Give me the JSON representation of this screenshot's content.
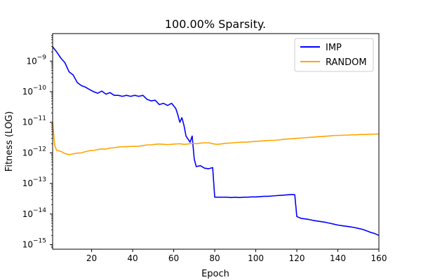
{
  "chart_data": {
    "type": "line",
    "title": "100.00% Sparsity.",
    "xlabel": "Epoch",
    "ylabel": "Fitness (LOG)",
    "xlim": [
      1,
      160
    ],
    "ylim_log10": [
      -15.15,
      -8.1
    ],
    "yscale": "log",
    "x_ticks": [
      20,
      40,
      60,
      80,
      100,
      120,
      140,
      160
    ],
    "x_tick_labels": [
      "20",
      "40",
      "60",
      "80",
      "100",
      "120",
      "140",
      "160"
    ],
    "y_ticks_exp": [
      -15,
      -14,
      -13,
      -12,
      -11,
      -10,
      -9
    ],
    "legend_position": "top-right",
    "grid": false,
    "series": [
      {
        "name": "IMP",
        "color": "#0000ff",
        "points": [
          [
            1,
            -8.53
          ],
          [
            3,
            -8.7
          ],
          [
            5,
            -8.9
          ],
          [
            7,
            -9.05
          ],
          [
            9,
            -9.35
          ],
          [
            11,
            -9.45
          ],
          [
            13,
            -9.7
          ],
          [
            15,
            -9.8
          ],
          [
            17,
            -9.85
          ],
          [
            19,
            -9.93
          ],
          [
            21,
            -10.0
          ],
          [
            23,
            -10.05
          ],
          [
            25,
            -9.98
          ],
          [
            27,
            -10.08
          ],
          [
            29,
            -10.03
          ],
          [
            31,
            -10.12
          ],
          [
            33,
            -10.12
          ],
          [
            35,
            -10.15
          ],
          [
            37,
            -10.12
          ],
          [
            39,
            -10.15
          ],
          [
            41,
            -10.12
          ],
          [
            43,
            -10.15
          ],
          [
            45,
            -10.12
          ],
          [
            47,
            -10.25
          ],
          [
            49,
            -10.3
          ],
          [
            51,
            -10.28
          ],
          [
            53,
            -10.42
          ],
          [
            55,
            -10.38
          ],
          [
            57,
            -10.45
          ],
          [
            59,
            -10.38
          ],
          [
            61,
            -10.55
          ],
          [
            62,
            -10.75
          ],
          [
            63,
            -11.0
          ],
          [
            64,
            -10.85
          ],
          [
            65,
            -11.1
          ],
          [
            66,
            -11.45
          ],
          [
            67,
            -11.55
          ],
          [
            68,
            -11.65
          ],
          [
            69,
            -11.45
          ],
          [
            70,
            -12.2
          ],
          [
            71,
            -12.45
          ],
          [
            73,
            -12.42
          ],
          [
            75,
            -12.5
          ],
          [
            77,
            -12.52
          ],
          [
            79,
            -12.48
          ],
          [
            80,
            -13.45
          ],
          [
            82,
            -13.45
          ],
          [
            84,
            -13.45
          ],
          [
            86,
            -13.45
          ],
          [
            88,
            -13.46
          ],
          [
            90,
            -13.45
          ],
          [
            92,
            -13.46
          ],
          [
            94,
            -13.45
          ],
          [
            96,
            -13.45
          ],
          [
            98,
            -13.44
          ],
          [
            100,
            -13.44
          ],
          [
            102,
            -13.43
          ],
          [
            104,
            -13.42
          ],
          [
            106,
            -13.42
          ],
          [
            108,
            -13.41
          ],
          [
            110,
            -13.4
          ],
          [
            112,
            -13.39
          ],
          [
            114,
            -13.38
          ],
          [
            116,
            -13.37
          ],
          [
            118,
            -13.36
          ],
          [
            119,
            -13.37
          ],
          [
            120,
            -14.08
          ],
          [
            122,
            -14.14
          ],
          [
            124,
            -14.16
          ],
          [
            126,
            -14.18
          ],
          [
            128,
            -14.21
          ],
          [
            130,
            -14.23
          ],
          [
            132,
            -14.25
          ],
          [
            134,
            -14.27
          ],
          [
            136,
            -14.3
          ],
          [
            138,
            -14.33
          ],
          [
            140,
            -14.36
          ],
          [
            142,
            -14.38
          ],
          [
            144,
            -14.4
          ],
          [
            146,
            -14.42
          ],
          [
            148,
            -14.44
          ],
          [
            150,
            -14.47
          ],
          [
            152,
            -14.5
          ],
          [
            154,
            -14.55
          ],
          [
            156,
            -14.6
          ],
          [
            158,
            -14.64
          ],
          [
            160,
            -14.7
          ]
        ]
      },
      {
        "name": "RANDOM",
        "color": "#ffa500",
        "points": [
          [
            1,
            -11.0
          ],
          [
            2,
            -11.75
          ],
          [
            3,
            -11.92
          ],
          [
            5,
            -11.95
          ],
          [
            7,
            -12.02
          ],
          [
            9,
            -12.06
          ],
          [
            11,
            -12.03
          ],
          [
            13,
            -12.01
          ],
          [
            15,
            -12.0
          ],
          [
            17,
            -11.96
          ],
          [
            19,
            -11.93
          ],
          [
            21,
            -11.92
          ],
          [
            23,
            -11.89
          ],
          [
            25,
            -11.87
          ],
          [
            27,
            -11.88
          ],
          [
            29,
            -11.84
          ],
          [
            31,
            -11.83
          ],
          [
            33,
            -11.81
          ],
          [
            35,
            -11.8
          ],
          [
            37,
            -11.8
          ],
          [
            39,
            -11.79
          ],
          [
            41,
            -11.79
          ],
          [
            43,
            -11.78
          ],
          [
            45,
            -11.76
          ],
          [
            47,
            -11.74
          ],
          [
            49,
            -11.74
          ],
          [
            51,
            -11.72
          ],
          [
            53,
            -11.71
          ],
          [
            55,
            -11.72
          ],
          [
            57,
            -11.73
          ],
          [
            59,
            -11.72
          ],
          [
            61,
            -11.71
          ],
          [
            63,
            -11.7
          ],
          [
            65,
            -11.72
          ],
          [
            67,
            -11.71
          ],
          [
            69,
            -11.69
          ],
          [
            71,
            -11.7
          ],
          [
            73,
            -11.68
          ],
          [
            75,
            -11.67
          ],
          [
            77,
            -11.67
          ],
          [
            79,
            -11.7
          ],
          [
            81,
            -11.72
          ],
          [
            83,
            -11.71
          ],
          [
            85,
            -11.69
          ],
          [
            87,
            -11.68
          ],
          [
            89,
            -11.67
          ],
          [
            91,
            -11.66
          ],
          [
            93,
            -11.65
          ],
          [
            95,
            -11.65
          ],
          [
            97,
            -11.64
          ],
          [
            99,
            -11.63
          ],
          [
            101,
            -11.62
          ],
          [
            103,
            -11.61
          ],
          [
            105,
            -11.6
          ],
          [
            107,
            -11.59
          ],
          [
            109,
            -11.59
          ],
          [
            111,
            -11.58
          ],
          [
            113,
            -11.56
          ],
          [
            115,
            -11.55
          ],
          [
            117,
            -11.54
          ],
          [
            119,
            -11.53
          ],
          [
            121,
            -11.52
          ],
          [
            123,
            -11.51
          ],
          [
            125,
            -11.5
          ],
          [
            127,
            -11.49
          ],
          [
            129,
            -11.48
          ],
          [
            131,
            -11.47
          ],
          [
            133,
            -11.46
          ],
          [
            135,
            -11.45
          ],
          [
            137,
            -11.44
          ],
          [
            139,
            -11.43
          ],
          [
            141,
            -11.43
          ],
          [
            143,
            -11.42
          ],
          [
            145,
            -11.42
          ],
          [
            147,
            -11.41
          ],
          [
            149,
            -11.41
          ],
          [
            151,
            -11.4
          ],
          [
            153,
            -11.4
          ],
          [
            155,
            -11.39
          ],
          [
            157,
            -11.39
          ],
          [
            160,
            -11.38
          ]
        ]
      }
    ]
  }
}
